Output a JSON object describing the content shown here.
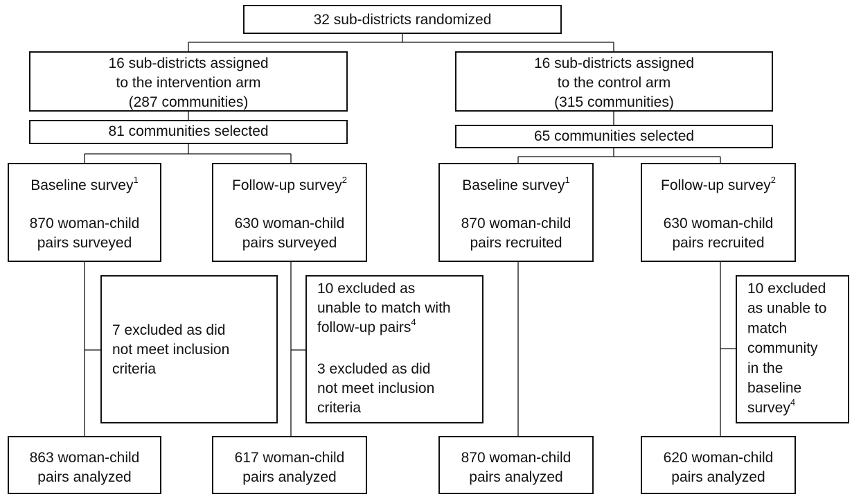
{
  "nodes": [
    {
      "paragraphs": [
        [
          {
            "text": "32 sub-districts randomized"
          }
        ]
      ]
    },
    {
      "paragraphs": [
        [
          {
            "text": "16 sub-districts assigned"
          },
          {
            "text": "to the intervention arm"
          },
          {
            "text": "(287 communities)"
          }
        ]
      ]
    },
    {
      "paragraphs": [
        [
          {
            "text": "16 sub-districts assigned"
          },
          {
            "text": "to the control arm"
          },
          {
            "text": "(315 communities)"
          }
        ]
      ]
    },
    {
      "paragraphs": [
        [
          {
            "text": "81 communities selected"
          }
        ]
      ]
    },
    {
      "paragraphs": [
        [
          {
            "text": "65 communities selected"
          }
        ]
      ]
    },
    {
      "paragraphs": [
        [
          {
            "text": "Baseline survey",
            "sup": "1"
          }
        ],
        [
          {
            "text": "870 woman-child"
          },
          {
            "text": "pairs surveyed"
          }
        ]
      ]
    },
    {
      "paragraphs": [
        [
          {
            "text": "Follow-up survey",
            "sup": "2"
          }
        ],
        [
          {
            "text": "630 woman-child"
          },
          {
            "text": "pairs surveyed"
          }
        ]
      ]
    },
    {
      "paragraphs": [
        [
          {
            "text": "Baseline survey",
            "sup": "1"
          }
        ],
        [
          {
            "text": "870 woman-child"
          },
          {
            "text": "pairs recruited"
          }
        ]
      ]
    },
    {
      "paragraphs": [
        [
          {
            "text": "Follow-up survey",
            "sup": "2"
          }
        ],
        [
          {
            "text": "630 woman-child"
          },
          {
            "text": "pairs recruited"
          }
        ]
      ]
    },
    {
      "paragraphs": [
        [
          {
            "text": "7 excluded as did"
          },
          {
            "text": "not meet inclusion"
          },
          {
            "text": "criteria"
          }
        ]
      ]
    },
    {
      "paragraphs": [
        [
          {
            "text": "10 excluded as"
          },
          {
            "text": "unable to match with"
          },
          {
            "text": "follow-up pairs",
            "sup": "4"
          }
        ],
        [
          {
            "text": "3 excluded as did"
          },
          {
            "text": "not meet inclusion"
          },
          {
            "text": "criteria"
          }
        ]
      ]
    },
    {
      "paragraphs": [
        [
          {
            "text": "10 excluded"
          },
          {
            "text": "as unable to"
          },
          {
            "text": "match"
          },
          {
            "text": "community"
          },
          {
            "text": "in the"
          },
          {
            "text": "baseline"
          },
          {
            "text": "survey",
            "sup": "4"
          }
        ]
      ]
    },
    {
      "paragraphs": [
        [
          {
            "text": "863 woman-child"
          },
          {
            "text": "pairs analyzed"
          }
        ]
      ]
    },
    {
      "paragraphs": [
        [
          {
            "text": "617 woman-child"
          },
          {
            "text": "pairs analyzed"
          }
        ]
      ]
    },
    {
      "paragraphs": [
        [
          {
            "text": "870 woman-child"
          },
          {
            "text": "pairs analyzed"
          }
        ]
      ]
    },
    {
      "paragraphs": [
        [
          {
            "text": "620 woman-child"
          },
          {
            "text": "pairs analyzed"
          }
        ]
      ]
    }
  ]
}
